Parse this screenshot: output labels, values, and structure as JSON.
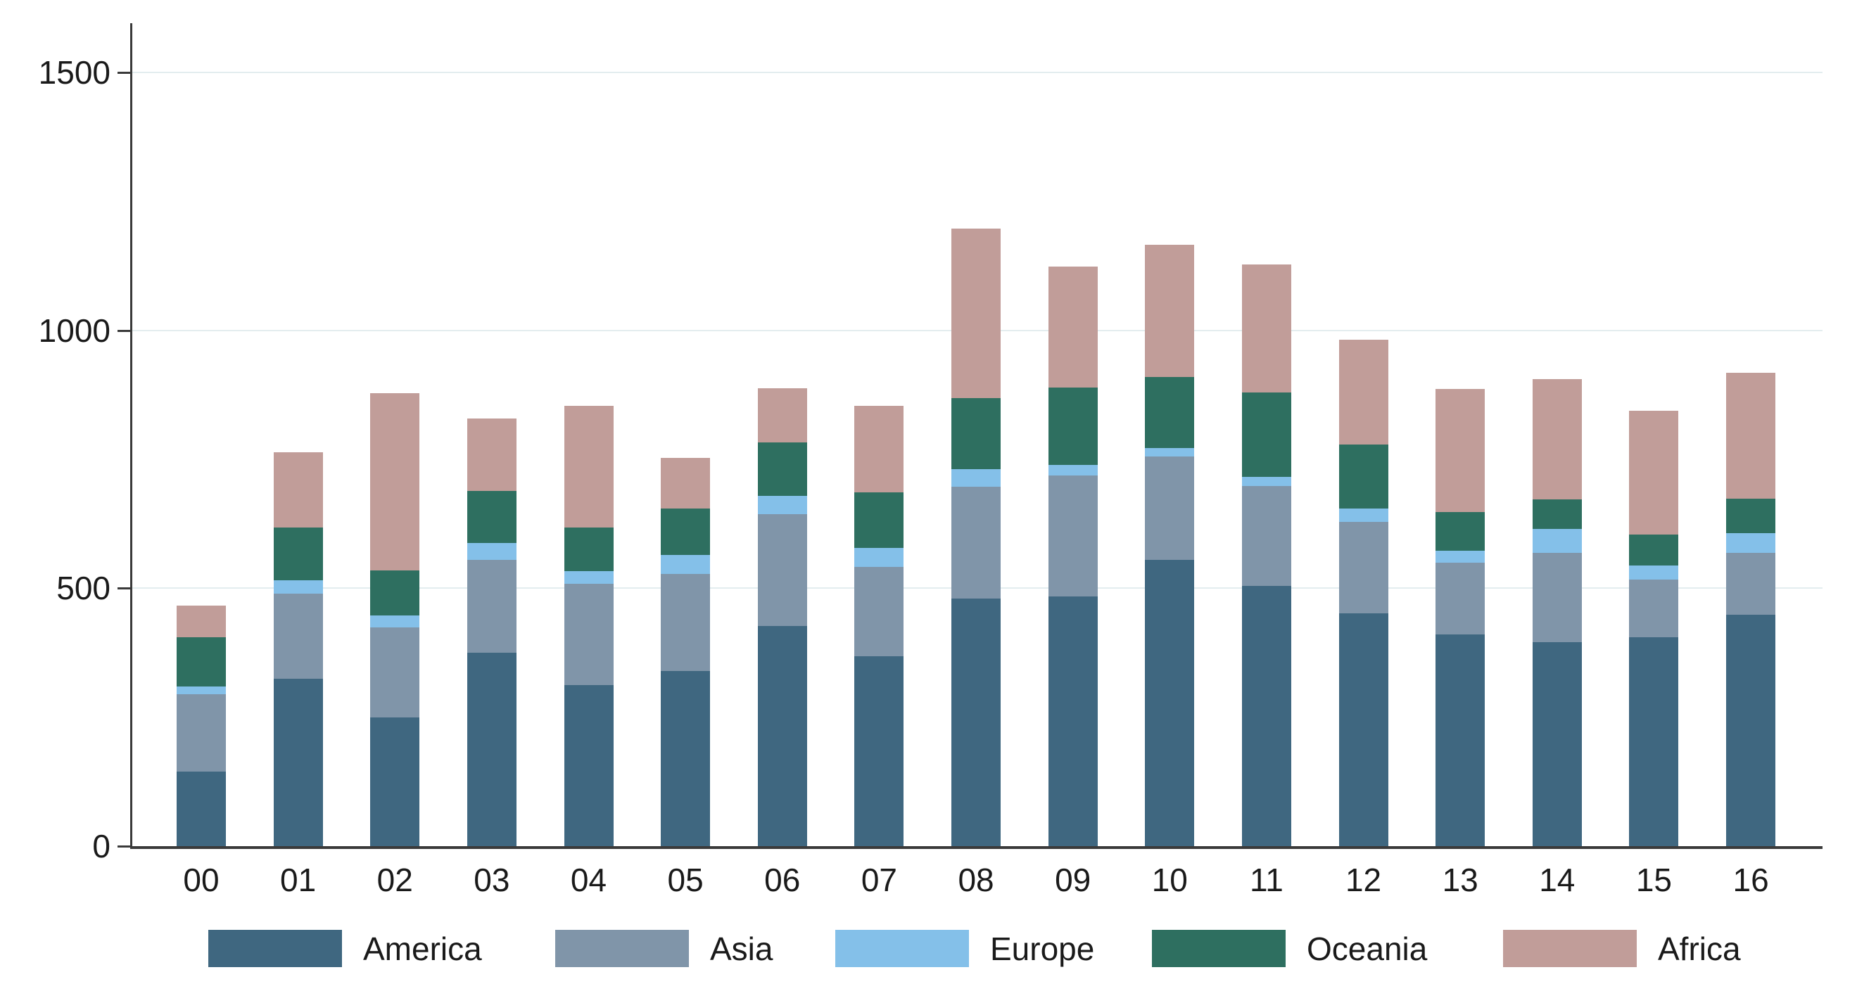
{
  "chart_data": {
    "type": "bar",
    "stacked": true,
    "title": "",
    "xlabel": "",
    "ylabel": "",
    "categories": [
      "00",
      "01",
      "02",
      "03",
      "04",
      "05",
      "06",
      "07",
      "08",
      "09",
      "10",
      "11",
      "12",
      "13",
      "14",
      "15",
      "16"
    ],
    "series": [
      {
        "name": "America",
        "color": "#3f6780",
        "values": [
          145,
          325,
          249,
          375,
          312,
          339,
          427,
          368,
          480,
          484,
          555,
          504,
          451,
          411,
          396,
          405,
          449
        ]
      },
      {
        "name": "Asia",
        "color": "#8095a9",
        "values": [
          150,
          165,
          175,
          180,
          196,
          188,
          216,
          173,
          217,
          235,
          200,
          194,
          178,
          138,
          172,
          112,
          120
        ]
      },
      {
        "name": "Europe",
        "color": "#84c0e9",
        "values": [
          15,
          26,
          23,
          33,
          25,
          37,
          36,
          37,
          34,
          20,
          17,
          18,
          25,
          23,
          47,
          27,
          38
        ]
      },
      {
        "name": "Oceania",
        "color": "#2e6f60",
        "values": [
          95,
          101,
          88,
          100,
          85,
          90,
          103,
          108,
          137,
          150,
          137,
          164,
          124,
          75,
          57,
          60,
          67
        ]
      },
      {
        "name": "Africa",
        "color": "#c19d99",
        "values": [
          62,
          147,
          343,
          141,
          235,
          98,
          106,
          167,
          329,
          235,
          257,
          247,
          204,
          239,
          233,
          240,
          243
        ]
      }
    ],
    "ylim": [
      0,
      1500
    ],
    "yticks": [
      0,
      500,
      1000,
      1500
    ],
    "y_tick_labels": [
      "0",
      "500",
      "1000",
      "1500"
    ],
    "grid": "horizontal",
    "legend_position": "bottom",
    "legend_items": [
      "America",
      "Asia",
      "Europe",
      "Oceania",
      "Africa"
    ]
  },
  "colors": {
    "background": "#ffffff",
    "gridline": "#e3edef",
    "axis": "#3a3a3a",
    "text": "#1a1a1a"
  }
}
